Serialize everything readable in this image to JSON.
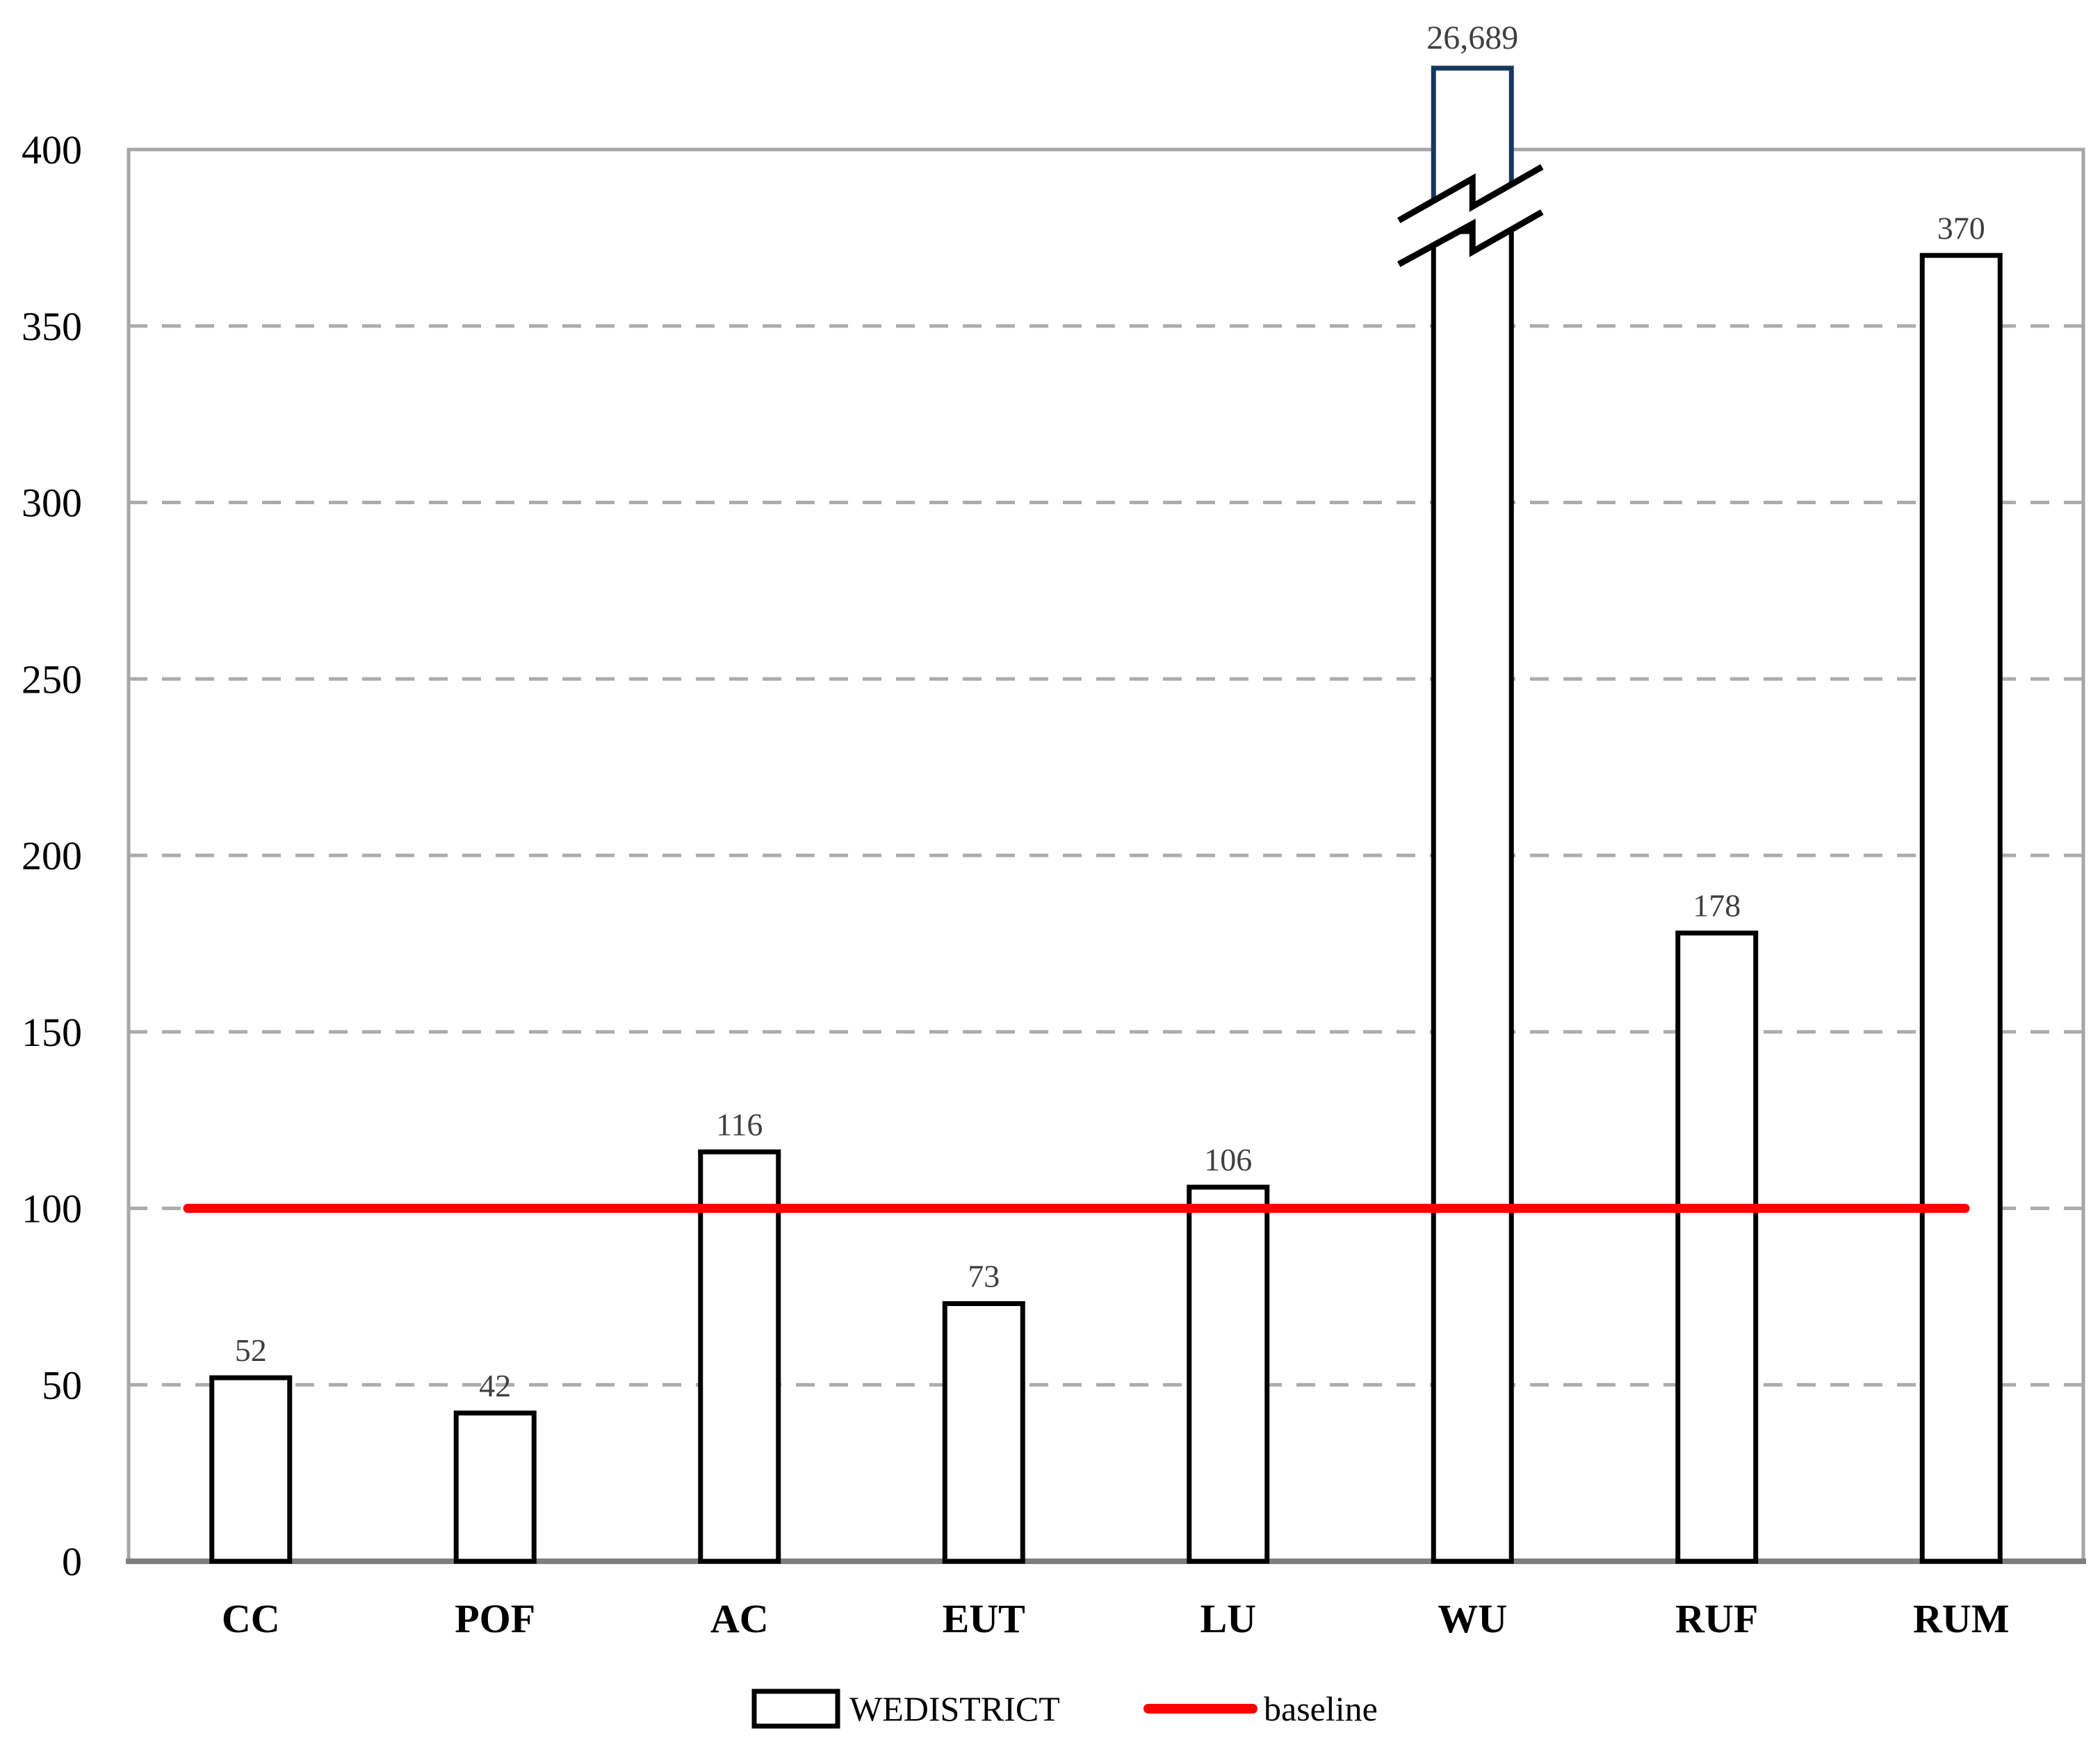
{
  "chart_data": {
    "type": "bar",
    "title": "",
    "categories": [
      "CC",
      "POF",
      "AC",
      "EUT",
      "LU",
      "WU",
      "RUF",
      "RUM"
    ],
    "series": [
      {
        "name": "WEDISTRICT",
        "values": [
          52,
          42,
          116,
          73,
          106,
          26689,
          178,
          370
        ]
      }
    ],
    "value_labels": [
      "52",
      "42",
      "116",
      "73",
      "106",
      "26,689",
      "178",
      "370"
    ],
    "baseline": {
      "label": "baseline",
      "value": 100
    },
    "ylim": [
      0,
      400
    ],
    "yticks": [
      0,
      50,
      100,
      150,
      200,
      250,
      300,
      350,
      400
    ],
    "ytick_labels": [
      "0",
      "50",
      "100",
      "150",
      "200",
      "250",
      "300",
      "350",
      "400"
    ],
    "axis_break_category": "WU",
    "grid": "horizontal-dashed",
    "legend_position": "bottom-center",
    "bar_fill": "#FFFFFF"
  },
  "colors": {
    "background": "#FFFFFF",
    "bar_border": "#000000",
    "overflow_bar_border": "#17375E",
    "baseline_red": "#FF0000",
    "gridline": "#ACACAC",
    "plot_border": "#A6A6A6",
    "bottom_axis": "#7F7F7F",
    "value_label": "#3F3F3F",
    "tick_label": "#000000",
    "category_label": "#000000"
  }
}
